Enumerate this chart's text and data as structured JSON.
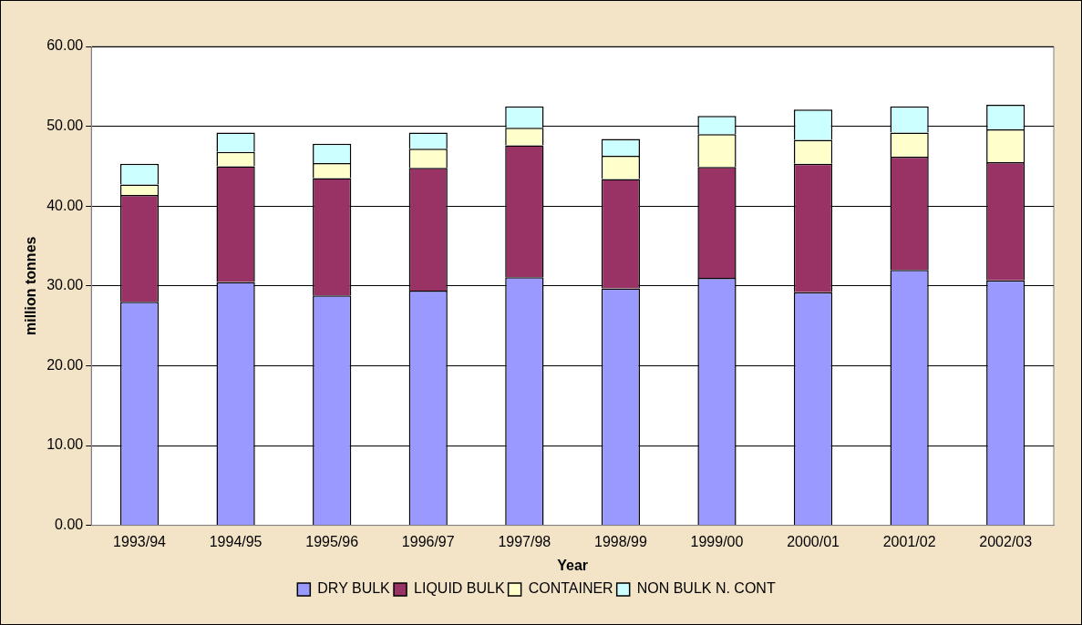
{
  "chart_data": {
    "type": "bar",
    "stacked": true,
    "xlabel": "Year",
    "ylabel": "million tonnes",
    "categories": [
      "1993/94",
      "1994/95",
      "1995/96",
      "1996/97",
      "1997/98",
      "1998/99",
      "1999/00",
      "2000/01",
      "2001/02",
      "2002/03"
    ],
    "series": [
      {
        "name": "DRY BULK",
        "color": "#9999ff",
        "values": [
          28.0,
          30.5,
          28.8,
          29.4,
          31.1,
          29.7,
          31.0,
          29.2,
          32.0,
          30.7
        ]
      },
      {
        "name": "LIQUID BULK",
        "color": "#993366",
        "values": [
          13.4,
          14.5,
          14.7,
          15.4,
          16.5,
          13.7,
          13.9,
          16.1,
          14.2,
          14.8
        ]
      },
      {
        "name": "CONTAINER",
        "color": "#ffffcc",
        "values": [
          1.3,
          1.8,
          1.9,
          2.4,
          2.2,
          2.9,
          4.1,
          3.0,
          3.0,
          4.1
        ]
      },
      {
        "name": "NON BULK N. CONT",
        "color": "#ccffff",
        "values": [
          2.6,
          2.4,
          2.4,
          2.0,
          2.7,
          2.1,
          2.3,
          3.8,
          3.3,
          3.1
        ]
      }
    ],
    "ylim": [
      0,
      60
    ],
    "yticks": [
      {
        "value": 0,
        "label": "0.00"
      },
      {
        "value": 10,
        "label": "10.00"
      },
      {
        "value": 20,
        "label": "20.00"
      },
      {
        "value": 30,
        "label": "30.00"
      },
      {
        "value": 40,
        "label": "40.00"
      },
      {
        "value": 50,
        "label": "50.00"
      },
      {
        "value": 60,
        "label": "60.00"
      }
    ],
    "grid": "y",
    "legend": "bottom"
  }
}
